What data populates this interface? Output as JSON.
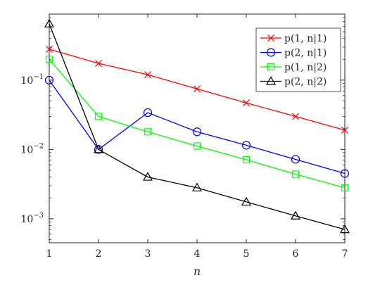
{
  "chart_data": {
    "type": "line",
    "x": [
      1,
      2,
      3,
      4,
      5,
      6,
      7
    ],
    "xlabel": "n",
    "ylabel": "",
    "xlim": [
      1,
      7
    ],
    "ylim": [
      0.00045,
      0.9
    ],
    "yscale": "log",
    "grid": false,
    "legend_position": "top-right",
    "x_ticks": [
      "1",
      "2",
      "3",
      "4",
      "5",
      "6",
      "7"
    ],
    "y_ticks": [
      {
        "value": 0.001,
        "base": "10",
        "exp": "−3"
      },
      {
        "value": 0.01,
        "base": "10",
        "exp": "−2"
      },
      {
        "value": 0.1,
        "base": "10",
        "exp": "−1"
      }
    ],
    "series": [
      {
        "name": "p(1, n|1)",
        "color": "#ff0000",
        "marker": "x",
        "values": [
          0.28,
          0.175,
          0.12,
          0.075,
          0.047,
          0.03,
          0.019
        ]
      },
      {
        "name": "p(2, n|1)",
        "color": "#0000ff",
        "marker": "circle",
        "values": [
          0.1,
          0.01,
          0.034,
          0.018,
          0.0115,
          0.0072,
          0.0045
        ]
      },
      {
        "name": "p(1, n|2)",
        "color": "#00ff00",
        "marker": "square",
        "values": [
          0.2,
          0.03,
          0.018,
          0.0112,
          0.0071,
          0.0044,
          0.0028
        ]
      },
      {
        "name": "p(2, n|2)",
        "color": "#000000",
        "marker": "triangle",
        "values": [
          0.65,
          0.01,
          0.004,
          0.0028,
          0.00175,
          0.0011,
          0.0007
        ]
      }
    ]
  }
}
